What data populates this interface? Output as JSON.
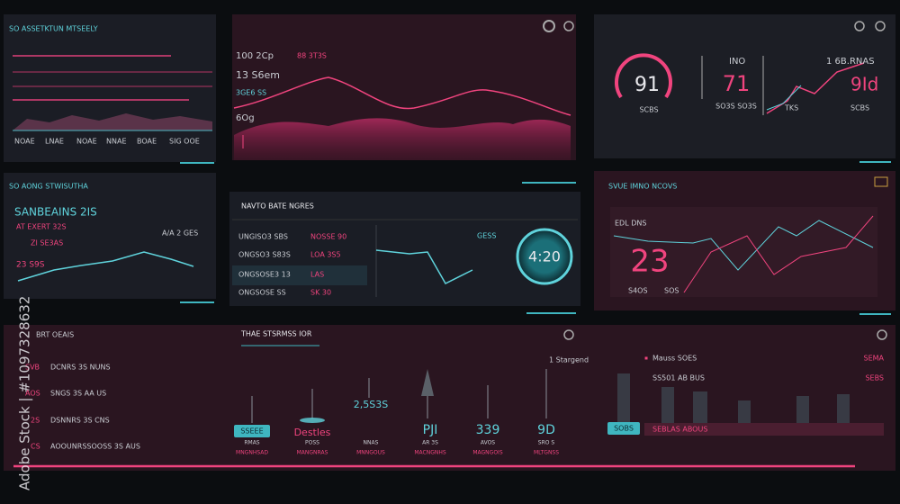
{
  "watermark": "Adobe Stock | #1097328632",
  "trend": {
    "title": "SO ASSETKTUN MTSEELY",
    "axis": [
      "NOAE",
      "LNAE",
      "NOAE",
      "NNAE",
      "BOAE",
      "SIG OOE"
    ]
  },
  "wave": {
    "labels": [
      "100 2Cp",
      "88 3T3S",
      "13 S6em",
      "3GE6 SS",
      "6Og"
    ]
  },
  "gauge": {
    "gauge_value": "91",
    "value_a": "71",
    "value_b": "9Id",
    "header_a": "INO",
    "header_b": "1 6B.RNAS",
    "captions": [
      "SCBS",
      "SO3S SO3S",
      "TKS",
      "SCBS"
    ]
  },
  "status": {
    "title": "SO AONG STWISUTHA",
    "heading": "SANBEAINS 2IS",
    "lines": [
      "AT EXERT 32S",
      "ZI SE3AS"
    ],
    "note": "A/A 2 GES",
    "value": "23 S9S"
  },
  "rates": {
    "title": "NAVTO BATE NGRES",
    "rows": [
      [
        "UNGISO3 SBS",
        "NOSSE 90"
      ],
      [
        "ONGSO3 S83S",
        "LOA 3S5"
      ],
      [
        "ONGSOSE3 13",
        "LAS"
      ],
      [
        "ONGSOSE SS",
        "SK 30"
      ]
    ],
    "tag": "GESS",
    "clock": "4:20"
  },
  "overview": {
    "title": "SVUE IMNO NCOVS",
    "label": "EDL DNS",
    "value": "23",
    "captions": [
      "S4OS",
      "SOS"
    ]
  },
  "bottom": {
    "list_title": "BRT OEAIS",
    "list": [
      [
        "SVB",
        "DCNRS 3S NUNS"
      ],
      [
        "AOS",
        "SNGS 3S AA US"
      ],
      [
        "2S",
        "DSNNRS 3S CNS"
      ],
      [
        "CS",
        "AOOUNRSSOOSS 3S AUS"
      ]
    ],
    "title": "THAE STSRMSS IOR",
    "button": "SSEEE",
    "tag": "1 Stargend",
    "metrics": [
      "Destles",
      "2,5S3S",
      "PJI",
      "339",
      "9D"
    ],
    "captions": [
      "RMAS",
      "POSS",
      "NNAS",
      "AR 3S",
      "AVOS",
      "SRO S"
    ],
    "subcaptions": [
      "MNGNHSAD",
      "MANGNRAS",
      "MNNGOUS",
      "MACNGNHS",
      "MAGNGOIS",
      "MLTGNSS"
    ],
    "right_rows": [
      [
        "Mauss SOES",
        "SEMA"
      ],
      [
        "SS501 AB BUS",
        "SEBS"
      ]
    ],
    "right_button": "SOBS",
    "right_caption": "SEBLAS ABOUS"
  }
}
